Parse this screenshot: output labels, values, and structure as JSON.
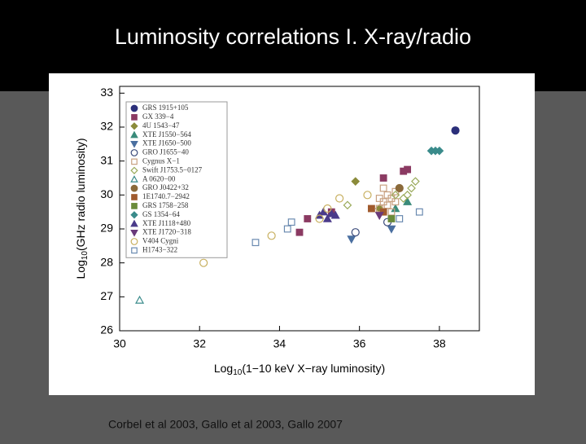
{
  "slide_title": "Luminosity correlations I. X-ray/radio",
  "caption": "Corbel et al 2003, Gallo et al 2003, Gallo 2007",
  "chart_data": {
    "type": "scatter",
    "xlabel": {
      "text": "Log",
      "sub": "10",
      "rest": "(1−10 keV X−ray luminosity)"
    },
    "ylabel": {
      "text": "Log",
      "sub": "10",
      "rest": "(GHz radio luminosity)"
    },
    "xlim": [
      30,
      39
    ],
    "ylim": [
      26,
      33.2
    ],
    "xticks": [
      30,
      32,
      34,
      36,
      38
    ],
    "yticks": [
      26,
      27,
      28,
      29,
      30,
      31,
      32,
      33
    ],
    "legend": "upper left",
    "series": [
      {
        "name": "GRS 1915+105",
        "color": "#2b2f7a",
        "marker": "circle",
        "filled": true,
        "x": [
          38.4
        ],
        "y": [
          31.9
        ]
      },
      {
        "name": "GX 339−4",
        "color": "#8b3a62",
        "marker": "square",
        "filled": true,
        "x": [
          34.5,
          34.7,
          35.3,
          36.6,
          37.1,
          37.2
        ],
        "y": [
          28.9,
          29.3,
          29.5,
          30.5,
          30.7,
          30.75
        ]
      },
      {
        "name": "4U 1543−47",
        "color": "#8b8b3a",
        "marker": "diamond",
        "filled": true,
        "x": [
          35.9,
          36.5
        ],
        "y": [
          30.4,
          29.6
        ]
      },
      {
        "name": "XTE J1550−564",
        "color": "#3a8b7a",
        "marker": "tri-up",
        "filled": true,
        "x": [
          36.9,
          37.2
        ],
        "y": [
          29.6,
          29.8
        ]
      },
      {
        "name": "XTE J1650−500",
        "color": "#4a6fa0",
        "marker": "tri-down",
        "filled": true,
        "x": [
          35.8,
          36.8
        ],
        "y": [
          28.7,
          29.0
        ]
      },
      {
        "name": "GRO J1655−40",
        "color": "#3a4a7a",
        "marker": "circle",
        "filled": false,
        "x": [
          35.9,
          36.7
        ],
        "y": [
          28.9,
          29.2
        ]
      },
      {
        "name": "Cygnus X−1",
        "color": "#c8a080",
        "marker": "square",
        "filled": false,
        "x": [
          36.5,
          36.6,
          36.7,
          36.8,
          36.9,
          36.6,
          36.7,
          36.8,
          36.5,
          36.9
        ],
        "y": [
          29.6,
          29.8,
          30.0,
          29.9,
          30.1,
          30.2,
          29.7,
          29.5,
          29.9,
          29.8
        ]
      },
      {
        "name": "Swift J1753.5−0127",
        "color": "#9aaa5a",
        "marker": "diamond",
        "filled": false,
        "x": [
          35.7,
          36.9,
          37.2,
          37.3,
          37.4,
          37.1
        ],
        "y": [
          29.7,
          30.0,
          30.0,
          30.2,
          30.4,
          29.9
        ]
      },
      {
        "name": "A 0620−00",
        "color": "#3a8b8b",
        "marker": "tri-up",
        "filled": false,
        "x": [
          30.5
        ],
        "y": [
          26.9
        ]
      },
      {
        "name": "GRO J0422+32",
        "color": "#8b6a3a",
        "marker": "circle",
        "filled": true,
        "x": [
          37.0
        ],
        "y": [
          30.2
        ]
      },
      {
        "name": "1E1740.7−2942",
        "color": "#a05a2d",
        "marker": "square",
        "filled": true,
        "x": [
          36.3,
          36.6
        ],
        "y": [
          29.6,
          29.5
        ]
      },
      {
        "name": "GRS 1758−258",
        "color": "#6a8b3a",
        "marker": "square",
        "filled": true,
        "x": [
          36.8
        ],
        "y": [
          29.3
        ]
      },
      {
        "name": "GS 1354−64",
        "color": "#3a8b8b",
        "marker": "diamond",
        "filled": true,
        "x": [
          37.8,
          37.9,
          38.0
        ],
        "y": [
          31.3,
          31.3,
          31.3
        ]
      },
      {
        "name": "XTE J1118+480",
        "color": "#4a3a8a",
        "marker": "tri-up",
        "filled": true,
        "x": [
          35.0,
          35.1,
          35.2,
          35.3,
          35.4
        ],
        "y": [
          29.4,
          29.5,
          29.3,
          29.45,
          29.4
        ]
      },
      {
        "name": "XTE J1720−318",
        "color": "#6a3a7a",
        "marker": "tri-down",
        "filled": true,
        "x": [
          36.5
        ],
        "y": [
          29.4
        ]
      },
      {
        "name": "V404 Cygni",
        "color": "#c8b060",
        "marker": "circle",
        "filled": false,
        "x": [
          32.1,
          33.8,
          35.2,
          35.5,
          36.2,
          35.0
        ],
        "y": [
          28.0,
          28.8,
          29.6,
          29.9,
          30.0,
          29.3
        ]
      },
      {
        "name": "H1743−322",
        "color": "#6a8ab0",
        "marker": "square",
        "filled": false,
        "x": [
          33.4,
          34.2,
          34.3,
          37.0,
          37.5
        ],
        "y": [
          28.6,
          29.0,
          29.2,
          29.3,
          29.5
        ]
      }
    ]
  }
}
